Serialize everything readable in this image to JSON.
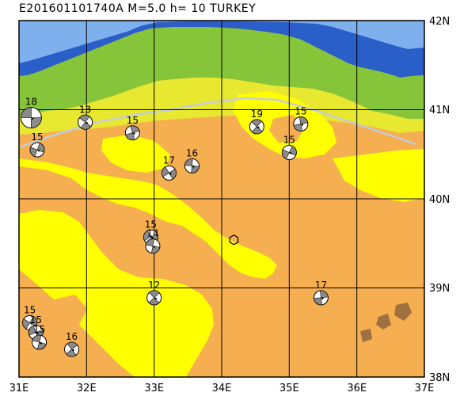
{
  "header": {
    "title": "E201601101740A  M=5.0  h= 10  TURKEY"
  },
  "map": {
    "lon_range": [
      31,
      37
    ],
    "lat_range": [
      38,
      42
    ],
    "x_tick_labels": [
      "31E",
      "32E",
      "33E",
      "34E",
      "35E",
      "36E",
      "37E"
    ],
    "y_tick_labels": [
      "42N",
      "41N",
      "40N",
      "39N",
      "38N"
    ],
    "epicenter": {
      "lon": 34.18,
      "lat": 39.54,
      "marker": "hexagon-outline"
    },
    "mechanisms": [
      {
        "label": "18",
        "lon": 31.18,
        "lat": 40.91
      },
      {
        "label": "13",
        "lon": 31.98,
        "lat": 40.86
      },
      {
        "label": "15",
        "lon": 32.68,
        "lat": 40.74
      },
      {
        "label": "15",
        "lon": 31.27,
        "lat": 40.55
      },
      {
        "label": "17",
        "lon": 33.22,
        "lat": 40.29
      },
      {
        "label": "16",
        "lon": 33.56,
        "lat": 40.37
      },
      {
        "label": "19",
        "lon": 34.52,
        "lat": 40.81
      },
      {
        "label": "15",
        "lon": 35.17,
        "lat": 40.84
      },
      {
        "label": "15",
        "lon": 35.0,
        "lat": 40.52
      },
      {
        "label": "15",
        "lon": 32.95,
        "lat": 39.57
      },
      {
        "label": "14",
        "lon": 32.98,
        "lat": 39.47
      },
      {
        "label": "12",
        "lon": 33.0,
        "lat": 38.89
      },
      {
        "label": "17",
        "lon": 35.47,
        "lat": 38.89
      },
      {
        "label": "15",
        "lon": 31.16,
        "lat": 38.61
      },
      {
        "label": "15",
        "lon": 31.25,
        "lat": 38.5
      },
      {
        "label": "15",
        "lon": 31.3,
        "lat": 38.39
      },
      {
        "label": "16",
        "lon": 31.78,
        "lat": 38.31
      }
    ]
  },
  "colors": {
    "sea_deep": "#2a5ec8",
    "sea_shallow": "#7fb0ee",
    "lowland": "#86c43a",
    "plain": "#e8e830",
    "upland": "#ffff00",
    "highland": "#f5ae50",
    "grid": "#000000",
    "boundary": "#c6ccd6",
    "beachball_dark": "#8a8a8a"
  }
}
